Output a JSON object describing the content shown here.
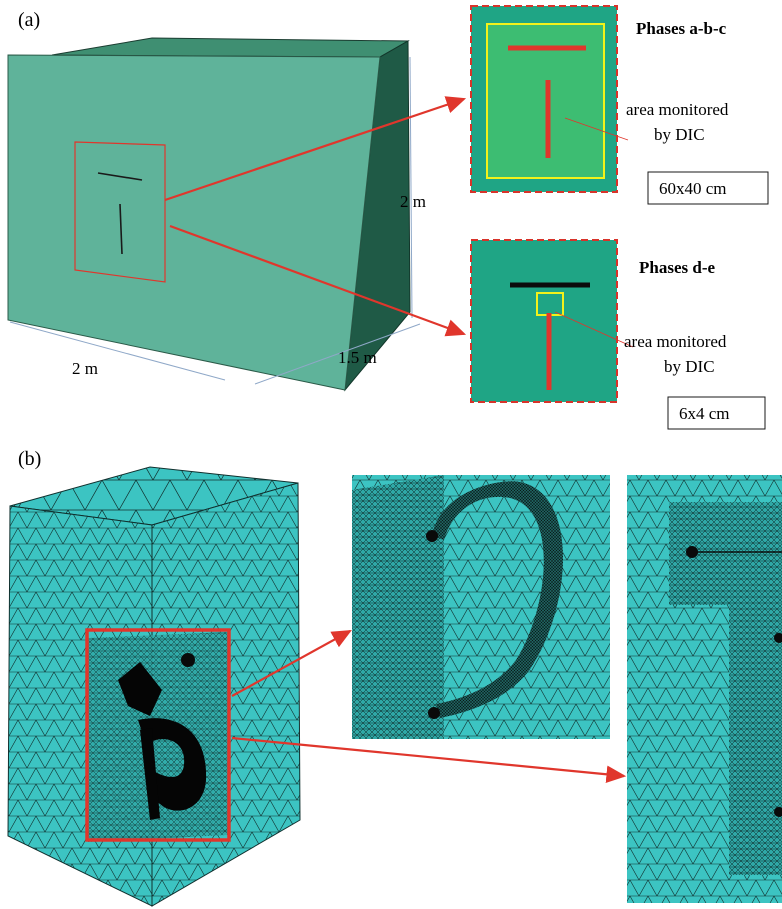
{
  "panel_a": {
    "label": "(a)",
    "dim_width": "2 m",
    "dim_height": "2 m",
    "dim_depth": "1.5 m",
    "phase_abc": {
      "title": "Phases a-b-c",
      "note_line1": "area monitored",
      "note_line2": "by DIC",
      "size": "60x40 cm"
    },
    "phase_de": {
      "title": "Phases d-e",
      "note_line1": "area monitored",
      "note_line2": "by DIC",
      "size": "6x4 cm"
    }
  },
  "panel_b": {
    "label": "(b)"
  },
  "colors": {
    "block_front": "#5fb39a",
    "block_top": "#3f8f72",
    "block_side": "#1f5a46",
    "inset_bg": "#1fa585",
    "inset_inner": "#3dbd72",
    "mesh": "#3cc4c2",
    "accent_red": "#e0362c",
    "monitor_yellow": "#f2f21a"
  }
}
